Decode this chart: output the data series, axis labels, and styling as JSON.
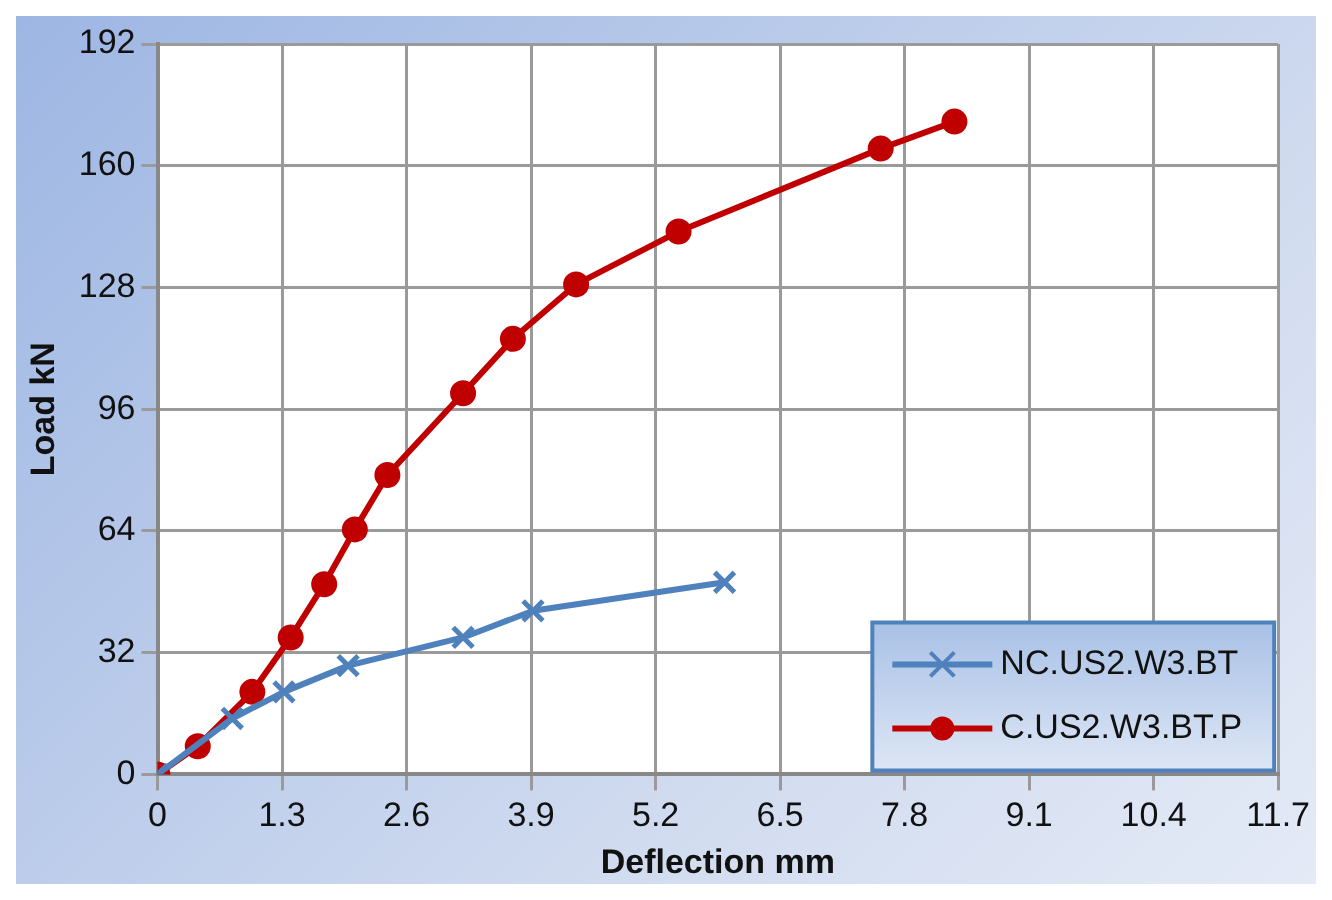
{
  "chart_data": {
    "type": "line",
    "xlabel": "Deflection mm",
    "ylabel": "Load kN",
    "xlim": [
      0,
      11.7
    ],
    "xticks": [
      0,
      1.3,
      2.6,
      3.9,
      5.2,
      6.5,
      7.8,
      9.1,
      10.4,
      11.7
    ],
    "ylim": [
      0,
      192
    ],
    "yticks": [
      0,
      32,
      64,
      96,
      128,
      160,
      192
    ],
    "grid": true,
    "legend": "bottom right",
    "series": [
      {
        "name": "NC.US2.W3.BT",
        "color": "#4f81bd",
        "marker": "cross",
        "x": [
          0,
          0.78,
          1.32,
          1.99,
          3.19,
          3.92,
          5.92
        ],
        "values": [
          0,
          14.7,
          21.7,
          28.6,
          36,
          43,
          50.5
        ]
      },
      {
        "name": "C.US2.W3.BT.P",
        "color": "#c00000",
        "marker": "circle",
        "x": [
          0,
          0.42,
          0.99,
          1.39,
          1.74,
          2.06,
          2.4,
          3.19,
          3.71,
          4.37,
          5.44,
          7.55,
          8.32
        ],
        "values": [
          0,
          7.4,
          21.7,
          36,
          50,
          64.4,
          78.7,
          100.2,
          114.5,
          128.8,
          142.7,
          164.5,
          171.6
        ]
      }
    ]
  }
}
